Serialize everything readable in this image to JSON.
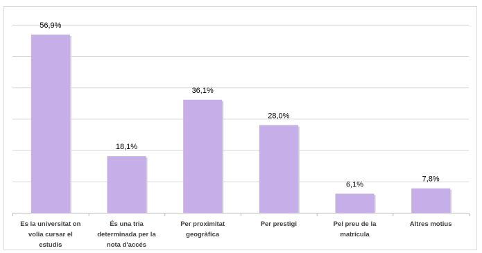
{
  "chart_data": {
    "type": "bar",
    "categories": [
      [
        "Es la universitat on",
        "volia cursar el",
        "estudis"
      ],
      [
        "És una tria",
        "determinada per la",
        "nota d'accés"
      ],
      [
        "Per proximitat",
        "geogràfica"
      ],
      [
        "Per prestigi"
      ],
      [
        "Pel preu de la",
        "matrícula"
      ],
      [
        "Altres motius"
      ]
    ],
    "values": [
      56.9,
      18.1,
      36.1,
      28.0,
      6.1,
      7.8
    ],
    "data_labels": [
      "56,9%",
      "18,1%",
      "36,1%",
      "28,0%",
      "6,1%",
      "7,8%"
    ],
    "ylim": [
      0,
      60
    ],
    "grid": true,
    "bar_color": "#c6aee8",
    "gridline_color": "#d9d9d9",
    "title": "",
    "xlabel": "",
    "ylabel": ""
  }
}
